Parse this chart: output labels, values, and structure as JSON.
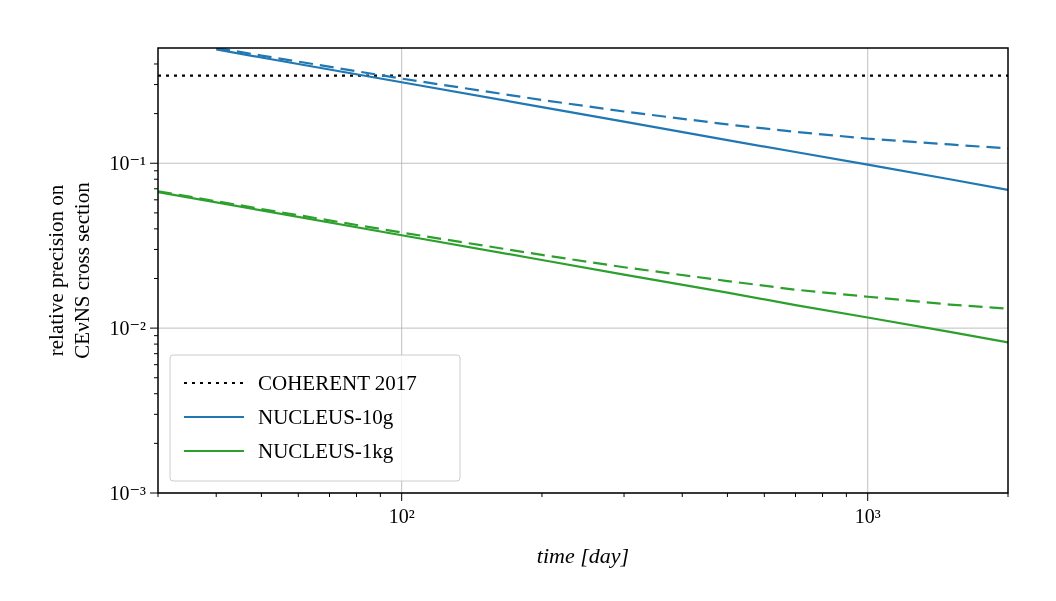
{
  "chart_data": {
    "type": "line",
    "xlabel": "time [day]",
    "ylabel": "relative precision on\nCEνNS cross section",
    "log": "xy",
    "grid": true,
    "legend": "bottom left",
    "xlim": [
      30,
      2000
    ],
    "ylim": [
      0.001,
      0.5
    ],
    "xticks": [
      {
        "value": 30,
        "label": null
      },
      {
        "value": 40,
        "label": null
      },
      {
        "value": 50,
        "label": null
      },
      {
        "value": 60,
        "label": null
      },
      {
        "value": 70,
        "label": null
      },
      {
        "value": 80,
        "label": null
      },
      {
        "value": 90,
        "label": null
      },
      {
        "value": 100,
        "label": "10²"
      },
      {
        "value": 200,
        "label": null
      },
      {
        "value": 300,
        "label": null
      },
      {
        "value": 400,
        "label": null
      },
      {
        "value": 500,
        "label": null
      },
      {
        "value": 600,
        "label": null
      },
      {
        "value": 700,
        "label": null
      },
      {
        "value": 800,
        "label": null
      },
      {
        "value": 900,
        "label": null
      },
      {
        "value": 1000,
        "label": "10³"
      },
      {
        "value": 2000,
        "label": null
      }
    ],
    "yticks": [
      {
        "value": 0.001,
        "label": "10⁻³"
      },
      {
        "value": 0.002,
        "label": null
      },
      {
        "value": 0.003,
        "label": null
      },
      {
        "value": 0.004,
        "label": null
      },
      {
        "value": 0.005,
        "label": null
      },
      {
        "value": 0.006,
        "label": null
      },
      {
        "value": 0.007,
        "label": null
      },
      {
        "value": 0.008,
        "label": null
      },
      {
        "value": 0.009,
        "label": null
      },
      {
        "value": 0.01,
        "label": "10⁻²"
      },
      {
        "value": 0.02,
        "label": null
      },
      {
        "value": 0.03,
        "label": null
      },
      {
        "value": 0.04,
        "label": null
      },
      {
        "value": 0.05,
        "label": null
      },
      {
        "value": 0.06,
        "label": null
      },
      {
        "value": 0.07,
        "label": null
      },
      {
        "value": 0.08,
        "label": null
      },
      {
        "value": 0.09,
        "label": null
      },
      {
        "value": 0.1,
        "label": "10⁻¹"
      },
      {
        "value": 0.2,
        "label": null
      },
      {
        "value": 0.3,
        "label": null
      },
      {
        "value": 0.4,
        "label": null
      }
    ],
    "series": [
      {
        "name": "COHERENT 2017",
        "color": "#000000",
        "line_style": "dotted",
        "x": [
          30,
          2000
        ],
        "values": [
          0.34,
          0.34
        ]
      },
      {
        "name": "NUCLEUS-10g",
        "color": "#1f77b4",
        "line_style": "solid",
        "x": [
          40,
          50,
          100,
          200,
          300,
          500,
          700,
          1000,
          1500,
          2000
        ],
        "values": [
          0.49,
          0.438,
          0.31,
          0.219,
          0.179,
          0.138,
          0.117,
          0.098,
          0.08,
          0.069
        ]
      },
      {
        "color": "#1f77b4",
        "line_style": "dashed",
        "x": [
          40,
          50,
          100,
          200,
          300,
          500,
          700,
          1000,
          1500,
          2000
        ],
        "values": [
          0.5,
          0.45,
          0.326,
          0.242,
          0.206,
          0.172,
          0.155,
          0.141,
          0.13,
          0.123
        ]
      },
      {
        "name": "NUCLEUS-1kg",
        "color": "#2ca02c",
        "line_style": "solid",
        "x": [
          30,
          50,
          100,
          200,
          300,
          500,
          700,
          1000,
          1500,
          2000
        ],
        "values": [
          0.0668,
          0.0518,
          0.0366,
          0.0259,
          0.0211,
          0.0164,
          0.0138,
          0.0116,
          0.0095,
          0.0082
        ]
      },
      {
        "color": "#2ca02c",
        "line_style": "dashed",
        "x": [
          30,
          50,
          100,
          200,
          300,
          500,
          700,
          1000,
          1500,
          2000
        ],
        "values": [
          0.0676,
          0.0528,
          0.038,
          0.0278,
          0.0234,
          0.0193,
          0.0171,
          0.0155,
          0.0139,
          0.0131
        ]
      }
    ]
  }
}
